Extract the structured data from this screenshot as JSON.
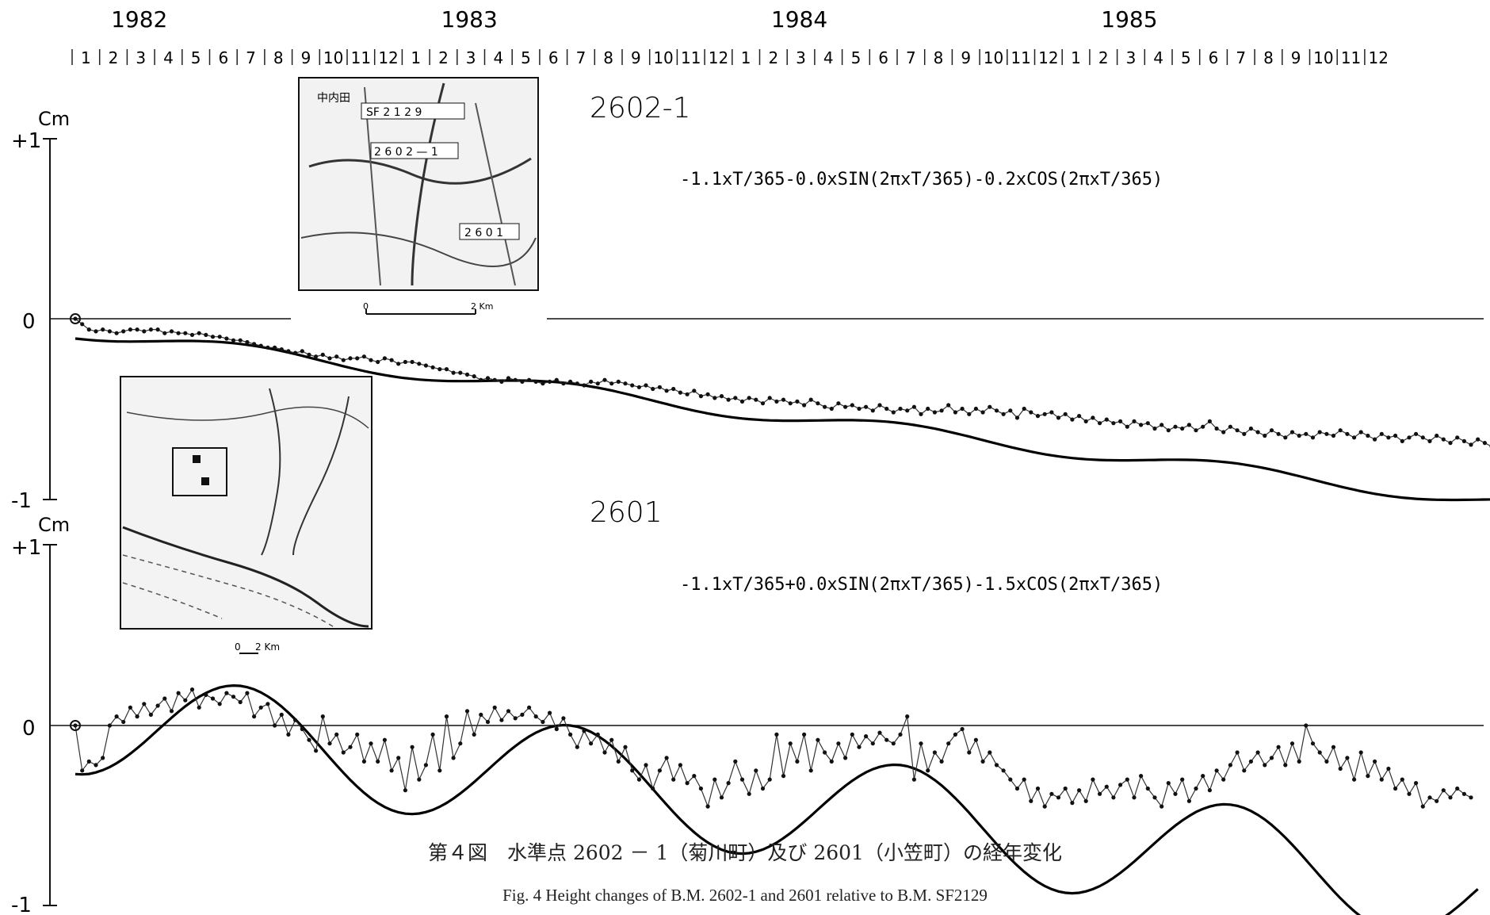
{
  "chart_data": [
    {
      "type": "line",
      "title": "2602-1",
      "formula": "-1.1xT/365-0.0xSIN(2πxT/365)-0.2xCOS(2πxT/365)",
      "unit": "Cm",
      "ylim": [
        -1,
        1
      ],
      "yticks": [
        "+1",
        "0",
        "-1"
      ],
      "xlim": [
        "1982-01",
        "1985-12"
      ],
      "series": [
        {
          "name": "",
          "kind": "observed-points",
          "start": "1982-01",
          "step_months": 0.25,
          "values": [
            0.0,
            -0.03,
            -0.06,
            -0.07,
            -0.06,
            -0.07,
            -0.08,
            -0.07,
            -0.06,
            -0.06,
            -0.07,
            -0.06,
            -0.06,
            -0.08,
            -0.07,
            -0.08,
            -0.08,
            -0.09,
            -0.08,
            -0.09,
            -0.1,
            -0.1,
            -0.11,
            -0.12,
            -0.12,
            -0.13,
            -0.14,
            -0.15,
            -0.16,
            -0.16,
            -0.17,
            -0.18,
            -0.19,
            -0.18,
            -0.2,
            -0.21,
            -0.2,
            -0.22,
            -0.21,
            -0.23,
            -0.22,
            -0.22,
            -0.21,
            -0.23,
            -0.24,
            -0.22,
            -0.23,
            -0.25,
            -0.24,
            -0.24,
            -0.25,
            -0.26,
            -0.27,
            -0.28,
            -0.28,
            -0.3,
            -0.3,
            -0.31,
            -0.32,
            -0.34,
            -0.33,
            -0.34,
            -0.35,
            -0.33,
            -0.34,
            -0.35,
            -0.34,
            -0.35,
            -0.36,
            -0.35,
            -0.34,
            -0.36,
            -0.35,
            -0.36,
            -0.37,
            -0.35,
            -0.36,
            -0.34,
            -0.36,
            -0.35,
            -0.36,
            -0.37,
            -0.38,
            -0.37,
            -0.39,
            -0.38,
            -0.4,
            -0.39,
            -0.41,
            -0.42,
            -0.4,
            -0.43,
            -0.42,
            -0.44,
            -0.43,
            -0.45,
            -0.44,
            -0.46,
            -0.44,
            -0.45,
            -0.47,
            -0.44,
            -0.46,
            -0.45,
            -0.47,
            -0.46,
            -0.48,
            -0.45,
            -0.47,
            -0.49,
            -0.5,
            -0.47,
            -0.49,
            -0.48,
            -0.5,
            -0.49,
            -0.51,
            -0.48,
            -0.5,
            -0.52,
            -0.5,
            -0.51,
            -0.49,
            -0.53,
            -0.5,
            -0.52,
            -0.51,
            -0.48,
            -0.52,
            -0.5,
            -0.53,
            -0.5,
            -0.52,
            -0.49,
            -0.51,
            -0.53,
            -0.51,
            -0.55,
            -0.5,
            -0.52,
            -0.54,
            -0.53,
            -0.52,
            -0.55,
            -0.53,
            -0.56,
            -0.54,
            -0.57,
            -0.55,
            -0.58,
            -0.56,
            -0.58,
            -0.57,
            -0.6,
            -0.57,
            -0.59,
            -0.58,
            -0.61,
            -0.59,
            -0.62,
            -0.6,
            -0.61,
            -0.59,
            -0.62,
            -0.6,
            -0.57,
            -0.61,
            -0.63,
            -0.6,
            -0.62,
            -0.64,
            -0.61,
            -0.63,
            -0.65,
            -0.62,
            -0.64,
            -0.66,
            -0.63,
            -0.65,
            -0.64,
            -0.66,
            -0.63,
            -0.64,
            -0.65,
            -0.62,
            -0.64,
            -0.66,
            -0.63,
            -0.65,
            -0.67,
            -0.64,
            -0.66,
            -0.65,
            -0.68,
            -0.66,
            -0.64,
            -0.66,
            -0.68,
            -0.65,
            -0.67,
            -0.69,
            -0.66,
            -0.68,
            -0.7,
            -0.67,
            -0.69,
            -0.71,
            -0.68,
            -0.7,
            -0.72,
            -0.69,
            -0.71,
            -0.73,
            -0.7,
            -0.72,
            -0.74,
            -0.72,
            -0.75,
            -0.73,
            -0.76,
            -0.74,
            -0.77,
            -0.75,
            -0.78,
            -0.76,
            -0.75
          ]
        }
      ]
    },
    {
      "type": "line",
      "title": "2601",
      "formula": "-1.1xT/365+0.0xSIN(2πxT/365)-1.5xCOS(2πxT/365)",
      "unit": "Cm",
      "ylim": [
        -1,
        1
      ],
      "yticks": [
        "+1",
        "0",
        "-1"
      ],
      "xlim": [
        "1982-01",
        "1985-12"
      ],
      "series": [
        {
          "name": "",
          "kind": "observed-points",
          "start": "1982-01",
          "step_months": 0.25,
          "values": [
            0.0,
            -0.25,
            -0.2,
            -0.22,
            -0.18,
            0.0,
            0.05,
            0.02,
            0.1,
            0.05,
            0.12,
            0.06,
            0.11,
            0.15,
            0.08,
            0.18,
            0.14,
            0.2,
            0.1,
            0.17,
            0.15,
            0.12,
            0.18,
            0.16,
            0.13,
            0.18,
            0.05,
            0.1,
            0.12,
            0.0,
            0.06,
            -0.05,
            0.03,
            -0.02,
            -0.08,
            -0.14,
            0.05,
            -0.1,
            -0.05,
            -0.15,
            -0.12,
            -0.05,
            -0.2,
            -0.1,
            -0.2,
            -0.08,
            -0.25,
            -0.18,
            -0.36,
            -0.12,
            -0.3,
            -0.22,
            -0.05,
            -0.25,
            0.05,
            -0.18,
            -0.1,
            0.08,
            -0.05,
            0.06,
            0.02,
            0.1,
            0.03,
            0.08,
            0.04,
            0.06,
            0.1,
            0.05,
            0.02,
            0.07,
            -0.02,
            0.04,
            -0.05,
            -0.12,
            -0.03,
            -0.1,
            -0.05,
            -0.15,
            -0.08,
            -0.2,
            -0.12,
            -0.25,
            -0.3,
            -0.22,
            -0.35,
            -0.25,
            -0.18,
            -0.3,
            -0.22,
            -0.32,
            -0.28,
            -0.35,
            -0.45,
            -0.3,
            -0.4,
            -0.32,
            -0.2,
            -0.3,
            -0.38,
            -0.25,
            -0.35,
            -0.3,
            -0.05,
            -0.28,
            -0.1,
            -0.2,
            -0.05,
            -0.25,
            -0.08,
            -0.15,
            -0.2,
            -0.1,
            -0.18,
            -0.05,
            -0.12,
            -0.06,
            -0.1,
            -0.04,
            -0.08,
            -0.1,
            -0.05,
            0.05,
            -0.3,
            -0.1,
            -0.25,
            -0.15,
            -0.2,
            -0.1,
            -0.05,
            -0.02,
            -0.15,
            -0.08,
            -0.2,
            -0.15,
            -0.22,
            -0.25,
            -0.3,
            -0.35,
            -0.3,
            -0.42,
            -0.35,
            -0.45,
            -0.38,
            -0.4,
            -0.35,
            -0.43,
            -0.36,
            -0.42,
            -0.3,
            -0.38,
            -0.34,
            -0.4,
            -0.33,
            -0.3,
            -0.4,
            -0.28,
            -0.35,
            -0.4,
            -0.45,
            -0.32,
            -0.38,
            -0.3,
            -0.42,
            -0.35,
            -0.28,
            -0.36,
            -0.25,
            -0.3,
            -0.22,
            -0.15,
            -0.25,
            -0.2,
            -0.15,
            -0.22,
            -0.18,
            -0.12,
            -0.22,
            -0.1,
            -0.2,
            0.0,
            -0.1,
            -0.15,
            -0.2,
            -0.12,
            -0.24,
            -0.18,
            -0.3,
            -0.15,
            -0.28,
            -0.2,
            -0.3,
            -0.24,
            -0.35,
            -0.3,
            -0.38,
            -0.32,
            -0.45,
            -0.4,
            -0.42,
            -0.36,
            -0.4,
            -0.35,
            -0.38,
            -0.4
          ]
        }
      ]
    }
  ],
  "axis_top": {
    "years": [
      "1982",
      "1983",
      "1984",
      "1985"
    ],
    "months": [
      "1",
      "2",
      "3",
      "4",
      "5",
      "6",
      "7",
      "8",
      "9",
      "10",
      "11",
      "12"
    ]
  },
  "caption": {
    "japanese": "第４図　水準点 2602 － 1（菊川町）及び 2601（小笠町）の経年変化",
    "english": "Fig. 4   Height changes of B.M. 2602-1 and 2601 relative to B.M. SF2129"
  },
  "map_upper": {
    "labels": [
      "中内田",
      "SF 2 1 2 9",
      "2 6 0 2 — 1",
      "2 6 0 1"
    ],
    "scale_start": "0",
    "scale_end": "2 Km"
  },
  "map_lower": {
    "scale_start": "0",
    "scale_end": "2 Km"
  }
}
